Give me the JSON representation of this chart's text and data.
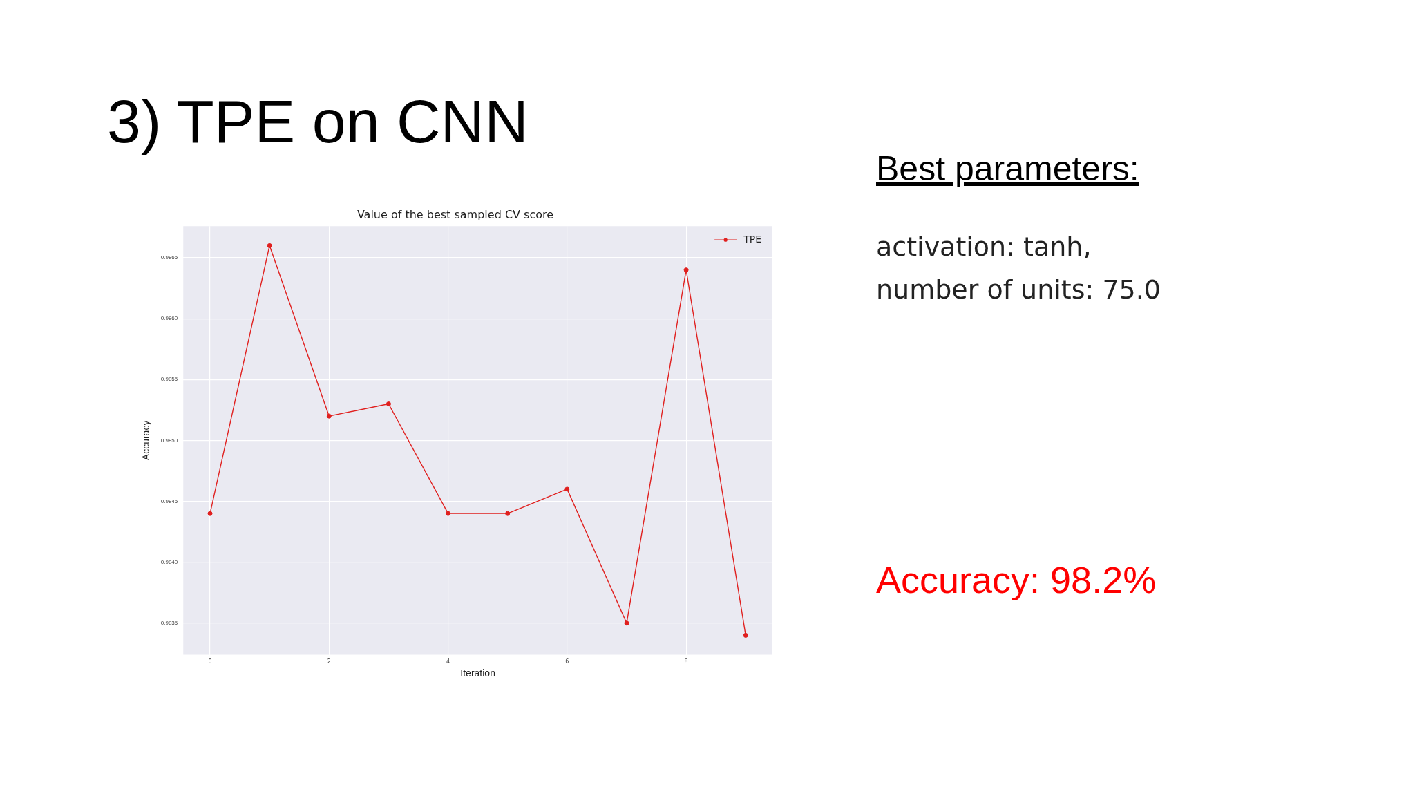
{
  "chart_data": {
    "type": "line",
    "title": "3) TPE on CNN",
    "subtitle": "Value of the best sampled CV score",
    "xlabel": "Iteration",
    "ylabel": "Accuracy",
    "x": [
      0,
      1,
      2,
      3,
      4,
      5,
      6,
      7,
      8,
      9
    ],
    "series": [
      {
        "name": "TPE",
        "color": "#e0201f",
        "values": [
          0.9844,
          0.9866,
          0.9852,
          0.9853,
          0.9844,
          0.9844,
          0.9846,
          0.9835,
          0.9864,
          0.9834
        ]
      }
    ],
    "xlim": [
      -0.45,
      9.45
    ],
    "xticks": [
      0,
      2,
      4,
      6,
      8
    ],
    "ylim": [
      0.98324,
      0.98676
    ],
    "yticks": [
      {
        "value": 0.9835,
        "label": "0.9835"
      },
      {
        "value": 0.984,
        "label": "0.9840"
      },
      {
        "value": 0.9845,
        "label": "0.9845"
      },
      {
        "value": 0.985,
        "label": "0.9850"
      },
      {
        "value": 0.9855,
        "label": "0.9855"
      },
      {
        "value": 0.986,
        "label": "0.9860"
      },
      {
        "value": 0.9865,
        "label": "0.9865"
      }
    ],
    "grid": true,
    "legend": "top right",
    "marker": "circle",
    "line_style": "solid",
    "annotations": [
      "Best parameters:",
      "activation: tanh,",
      "number of units: 75.0",
      "Accuracy: 98.2%"
    ]
  }
}
